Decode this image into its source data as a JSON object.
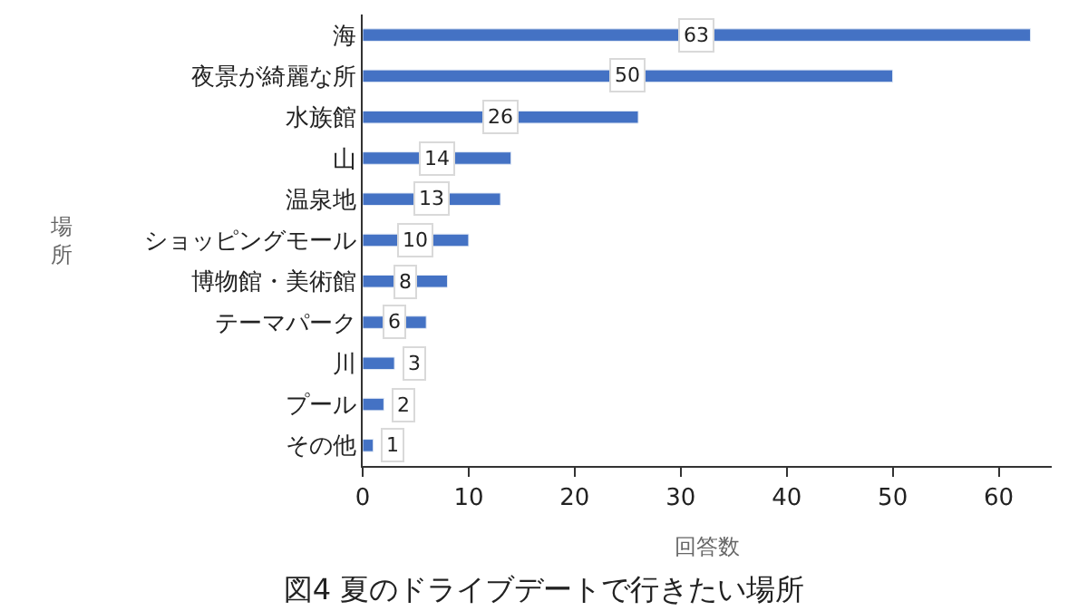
{
  "chart_data": {
    "type": "bar",
    "orientation": "horizontal",
    "title": "図4 夏のドライブデートで行きたい場所",
    "xlabel": "回答数",
    "ylabel": "場所",
    "categories": [
      "海",
      "夜景が綺麗な所",
      "水族館",
      "山",
      "温泉地",
      "ショッピングモール",
      "博物館・美術館",
      "テーマパーク",
      "川",
      "プール",
      "その他"
    ],
    "values": [
      63,
      50,
      26,
      14,
      13,
      10,
      8,
      6,
      3,
      2,
      1
    ],
    "color": "#4472c4",
    "xlim": [
      0,
      65
    ],
    "xticks": [
      0,
      10,
      20,
      30,
      40,
      50,
      60
    ],
    "data_labels": true
  }
}
